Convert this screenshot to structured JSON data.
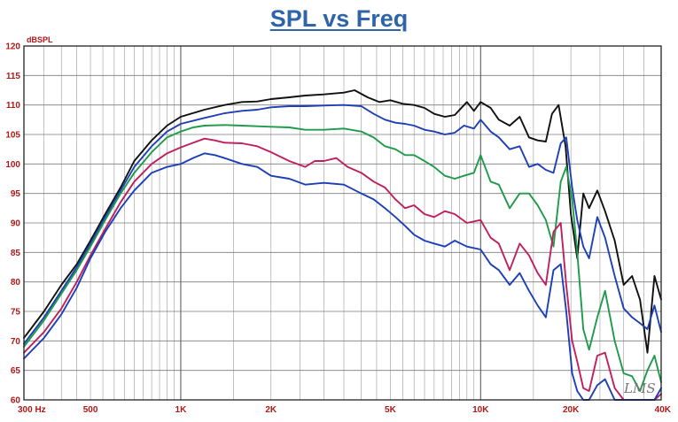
{
  "title": "SPL vs Freq",
  "watermark": "LMS",
  "colors": {
    "title": "#2f64a8",
    "tick_text": "#b01818",
    "grid": "#9a9a9a",
    "border": "#222222"
  },
  "chart_data": {
    "type": "line",
    "title": "SPL vs Freq",
    "ylabel": "dBSPL",
    "xlabel": "",
    "x_scale": "log",
    "xlim": [
      300,
      40000
    ],
    "ylim": [
      60,
      120
    ],
    "grid": true,
    "x_ticks": [
      {
        "value": 300,
        "label": "300  Hz"
      },
      {
        "value": 500,
        "label": "500"
      },
      {
        "value": 1000,
        "label": "1K"
      },
      {
        "value": 2000,
        "label": "2K"
      },
      {
        "value": 5000,
        "label": "5K"
      },
      {
        "value": 10000,
        "label": "10K"
      },
      {
        "value": 20000,
        "label": "20K"
      },
      {
        "value": 40000,
        "label": "40K"
      }
    ],
    "y_ticks": [
      {
        "value": 60,
        "label": "60"
      },
      {
        "value": 65,
        "label": "65"
      },
      {
        "value": 70,
        "label": "70"
      },
      {
        "value": 75,
        "label": "75"
      },
      {
        "value": 80,
        "label": "80"
      },
      {
        "value": 85,
        "label": "85"
      },
      {
        "value": 90,
        "label": "90"
      },
      {
        "value": 95,
        "label": "95"
      },
      {
        "value": 100,
        "label": "100"
      },
      {
        "value": 105,
        "label": "105"
      },
      {
        "value": 110,
        "label": "110"
      },
      {
        "value": 115,
        "label": "115"
      },
      {
        "value": 120,
        "label": "120"
      }
    ],
    "series": [
      {
        "color": "#111111",
        "points": [
          [
            300,
            70.5
          ],
          [
            350,
            75
          ],
          [
            400,
            79.5
          ],
          [
            450,
            83
          ],
          [
            500,
            87
          ],
          [
            560,
            91.5
          ],
          [
            630,
            96
          ],
          [
            700,
            100.5
          ],
          [
            800,
            104
          ],
          [
            900,
            106.5
          ],
          [
            1000,
            108
          ],
          [
            1200,
            109.2
          ],
          [
            1400,
            110
          ],
          [
            1600,
            110.5
          ],
          [
            1800,
            110.6
          ],
          [
            2000,
            111
          ],
          [
            2300,
            111.3
          ],
          [
            2600,
            111.6
          ],
          [
            3000,
            111.8
          ],
          [
            3500,
            112.1
          ],
          [
            3800,
            112.5
          ],
          [
            4200,
            111.3
          ],
          [
            4600,
            110.5
          ],
          [
            5000,
            110.8
          ],
          [
            5500,
            110.2
          ],
          [
            6000,
            110
          ],
          [
            6500,
            109.5
          ],
          [
            7000,
            108.5
          ],
          [
            7600,
            108
          ],
          [
            8200,
            108.3
          ],
          [
            9000,
            110.5
          ],
          [
            9500,
            109
          ],
          [
            10000,
            110.5
          ],
          [
            10800,
            109.5
          ],
          [
            11500,
            107.5
          ],
          [
            12500,
            106.5
          ],
          [
            13500,
            108
          ],
          [
            14500,
            104.5
          ],
          [
            15500,
            104
          ],
          [
            16500,
            103.8
          ],
          [
            17300,
            108.5
          ],
          [
            18200,
            110
          ],
          [
            19200,
            103
          ],
          [
            20000,
            91.5
          ],
          [
            21000,
            84
          ],
          [
            22000,
            95
          ],
          [
            23000,
            92.5
          ],
          [
            24500,
            95.5
          ],
          [
            26000,
            92
          ],
          [
            28000,
            87
          ],
          [
            30000,
            79.5
          ],
          [
            32000,
            81
          ],
          [
            34000,
            77
          ],
          [
            36000,
            68
          ],
          [
            38000,
            81
          ],
          [
            40000,
            77
          ]
        ]
      },
      {
        "color": "#1e3fb5",
        "points": [
          [
            300,
            69.5
          ],
          [
            350,
            74
          ],
          [
            400,
            78.5
          ],
          [
            450,
            82.5
          ],
          [
            500,
            86.5
          ],
          [
            560,
            91
          ],
          [
            630,
            95.5
          ],
          [
            700,
            99.5
          ],
          [
            800,
            103
          ],
          [
            900,
            105.5
          ],
          [
            1000,
            106.8
          ],
          [
            1200,
            107.8
          ],
          [
            1400,
            108.6
          ],
          [
            1600,
            109
          ],
          [
            1800,
            109.2
          ],
          [
            2000,
            109.6
          ],
          [
            2300,
            109.8
          ],
          [
            2600,
            109.8
          ],
          [
            3000,
            109.9
          ],
          [
            3500,
            110
          ],
          [
            4000,
            109.8
          ],
          [
            4400,
            108.5
          ],
          [
            4800,
            107.5
          ],
          [
            5200,
            107
          ],
          [
            5600,
            106.8
          ],
          [
            6000,
            106.5
          ],
          [
            6500,
            105.8
          ],
          [
            7000,
            105.5
          ],
          [
            7600,
            105
          ],
          [
            8200,
            105.3
          ],
          [
            8800,
            106.5
          ],
          [
            9500,
            106
          ],
          [
            10000,
            107.5
          ],
          [
            10800,
            105.5
          ],
          [
            11500,
            104.5
          ],
          [
            12500,
            102.5
          ],
          [
            13500,
            103
          ],
          [
            14500,
            99.5
          ],
          [
            15500,
            100
          ],
          [
            16500,
            99
          ],
          [
            17500,
            98.5
          ],
          [
            18500,
            103.5
          ],
          [
            19300,
            104.5
          ],
          [
            20200,
            96
          ],
          [
            21000,
            90.5
          ],
          [
            22000,
            86
          ],
          [
            23000,
            84
          ],
          [
            24500,
            91
          ],
          [
            26000,
            87.5
          ],
          [
            28000,
            81
          ],
          [
            30000,
            75.5
          ],
          [
            32000,
            74
          ],
          [
            34000,
            73
          ],
          [
            36000,
            72
          ],
          [
            38000,
            76
          ],
          [
            40000,
            71.5
          ]
        ]
      },
      {
        "color": "#1f9a4a",
        "points": [
          [
            300,
            69
          ],
          [
            350,
            73.5
          ],
          [
            400,
            78
          ],
          [
            450,
            82
          ],
          [
            500,
            86
          ],
          [
            560,
            90.5
          ],
          [
            630,
            95
          ],
          [
            700,
            98.5
          ],
          [
            800,
            102
          ],
          [
            900,
            104.5
          ],
          [
            1000,
            105.5
          ],
          [
            1100,
            106.2
          ],
          [
            1200,
            106.5
          ],
          [
            1400,
            106.6
          ],
          [
            1600,
            106.5
          ],
          [
            1800,
            106.4
          ],
          [
            2000,
            106.3
          ],
          [
            2300,
            106.2
          ],
          [
            2600,
            105.8
          ],
          [
            3000,
            105.8
          ],
          [
            3500,
            106
          ],
          [
            4000,
            105.5
          ],
          [
            4400,
            104.5
          ],
          [
            4800,
            103
          ],
          [
            5200,
            102.5
          ],
          [
            5600,
            101.5
          ],
          [
            6000,
            101.5
          ],
          [
            6500,
            100.5
          ],
          [
            7000,
            99.5
          ],
          [
            7600,
            98
          ],
          [
            8200,
            97.5
          ],
          [
            8800,
            98
          ],
          [
            9500,
            98.5
          ],
          [
            10000,
            101.5
          ],
          [
            10800,
            97
          ],
          [
            11500,
            96.5
          ],
          [
            12500,
            92.5
          ],
          [
            13500,
            95
          ],
          [
            14500,
            95
          ],
          [
            15500,
            93
          ],
          [
            16500,
            90.5
          ],
          [
            17500,
            86
          ],
          [
            18500,
            97
          ],
          [
            19300,
            99.5
          ],
          [
            20200,
            94
          ],
          [
            21000,
            85
          ],
          [
            22000,
            72
          ],
          [
            23000,
            68.5
          ],
          [
            24500,
            74
          ],
          [
            26000,
            78.5
          ],
          [
            28000,
            70
          ],
          [
            30000,
            64.5
          ],
          [
            32000,
            64
          ],
          [
            34000,
            61.5
          ],
          [
            36000,
            65
          ],
          [
            38000,
            67.5
          ],
          [
            40000,
            63
          ]
        ]
      },
      {
        "color": "#c01f5e",
        "points": [
          [
            300,
            68
          ],
          [
            350,
            71.5
          ],
          [
            400,
            75.5
          ],
          [
            450,
            80
          ],
          [
            500,
            84.5
          ],
          [
            560,
            89
          ],
          [
            630,
            93.5
          ],
          [
            700,
            97
          ],
          [
            800,
            100
          ],
          [
            900,
            101.8
          ],
          [
            1000,
            102.8
          ],
          [
            1100,
            103.6
          ],
          [
            1200,
            104.3
          ],
          [
            1300,
            104
          ],
          [
            1400,
            103.6
          ],
          [
            1600,
            103.5
          ],
          [
            1800,
            103
          ],
          [
            2000,
            102
          ],
          [
            2300,
            100.5
          ],
          [
            2600,
            99.5
          ],
          [
            2800,
            100.5
          ],
          [
            3000,
            100.5
          ],
          [
            3300,
            101
          ],
          [
            3600,
            99.5
          ],
          [
            4000,
            98.5
          ],
          [
            4400,
            97
          ],
          [
            4800,
            96
          ],
          [
            5200,
            94
          ],
          [
            5600,
            92.5
          ],
          [
            6000,
            93
          ],
          [
            6500,
            91.5
          ],
          [
            7000,
            91
          ],
          [
            7600,
            92
          ],
          [
            8200,
            91.5
          ],
          [
            9000,
            90
          ],
          [
            10000,
            90.5
          ],
          [
            10800,
            87.5
          ],
          [
            11500,
            86.5
          ],
          [
            12500,
            82
          ],
          [
            13500,
            86.5
          ],
          [
            14500,
            84.5
          ],
          [
            15500,
            81.5
          ],
          [
            16500,
            79.5
          ],
          [
            17500,
            88.5
          ],
          [
            18500,
            90
          ],
          [
            19300,
            79.5
          ],
          [
            20200,
            70
          ],
          [
            21000,
            66.5
          ],
          [
            22000,
            62
          ],
          [
            23000,
            61.5
          ],
          [
            24500,
            67.5
          ],
          [
            26000,
            68
          ],
          [
            28000,
            62
          ],
          [
            30000,
            60
          ],
          [
            32000,
            60
          ],
          [
            34000,
            60
          ],
          [
            36000,
            60
          ],
          [
            38000,
            60
          ],
          [
            40000,
            61
          ]
        ]
      },
      {
        "color": "#1c3fb8",
        "points": [
          [
            300,
            67
          ],
          [
            350,
            70.5
          ],
          [
            400,
            74.5
          ],
          [
            450,
            79
          ],
          [
            500,
            84
          ],
          [
            560,
            88.5
          ],
          [
            630,
            92.5
          ],
          [
            700,
            95.5
          ],
          [
            800,
            98.5
          ],
          [
            900,
            99.5
          ],
          [
            1000,
            100
          ],
          [
            1100,
            101
          ],
          [
            1200,
            101.8
          ],
          [
            1300,
            101.5
          ],
          [
            1400,
            101
          ],
          [
            1600,
            100
          ],
          [
            1800,
            99.5
          ],
          [
            2000,
            98
          ],
          [
            2300,
            97.5
          ],
          [
            2600,
            96.5
          ],
          [
            3000,
            96.8
          ],
          [
            3500,
            96.5
          ],
          [
            4000,
            95
          ],
          [
            4400,
            94
          ],
          [
            4800,
            92.5
          ],
          [
            5200,
            91
          ],
          [
            5600,
            89.5
          ],
          [
            6000,
            88
          ],
          [
            6500,
            87
          ],
          [
            7000,
            86.5
          ],
          [
            7600,
            86
          ],
          [
            8200,
            87
          ],
          [
            9000,
            86
          ],
          [
            10000,
            85.5
          ],
          [
            10800,
            83
          ],
          [
            11500,
            82
          ],
          [
            12500,
            79.5
          ],
          [
            13500,
            81.5
          ],
          [
            14500,
            78.5
          ],
          [
            15500,
            76
          ],
          [
            16500,
            74
          ],
          [
            17500,
            82
          ],
          [
            18500,
            83
          ],
          [
            19300,
            75
          ],
          [
            20200,
            64.5
          ],
          [
            21000,
            61.5
          ],
          [
            22000,
            60
          ],
          [
            23000,
            60
          ],
          [
            24500,
            62.5
          ],
          [
            26000,
            63.5
          ],
          [
            28000,
            60
          ],
          [
            30000,
            60
          ],
          [
            32000,
            60
          ],
          [
            34000,
            60
          ],
          [
            36000,
            60
          ],
          [
            38000,
            60
          ],
          [
            40000,
            62
          ]
        ]
      }
    ]
  }
}
